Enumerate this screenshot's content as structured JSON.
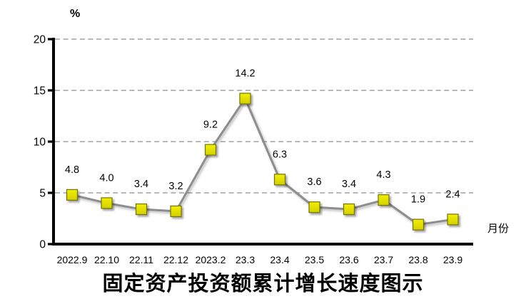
{
  "chart_data": {
    "type": "line",
    "title": "固定资产投资额累计增长速度图示",
    "xlabel": "月份",
    "ylabel": "%",
    "categories": [
      "2022.9",
      "22.10",
      "22.11",
      "22.12",
      "2023.2",
      "23.3",
      "23.4",
      "23.5",
      "23.6",
      "23.7",
      "23.8",
      "23.9"
    ],
    "values": [
      4.8,
      4.0,
      3.4,
      3.2,
      9.2,
      14.2,
      6.3,
      3.6,
      3.4,
      4.3,
      1.9,
      2.4
    ],
    "data_labels": [
      "4.8",
      "4.0",
      "3.4",
      "3.2",
      "9.2",
      "14.2",
      "6.3",
      "3.6",
      "3.4",
      "4.3",
      "1.9",
      "2.4"
    ],
    "ylim": [
      0,
      20
    ],
    "yticks": [
      0,
      5,
      10,
      15,
      20
    ],
    "grid": "horizontal-dashed",
    "legend": "none",
    "marker": "square",
    "colors": {
      "marker_fill_top": "#f2ef00",
      "marker_fill_bottom": "#d2cf00",
      "marker_border": "#72720a",
      "line": "#8d8d8d",
      "grid": "#a0a0a0",
      "axis": "#000000",
      "background": "#ffffff"
    }
  }
}
